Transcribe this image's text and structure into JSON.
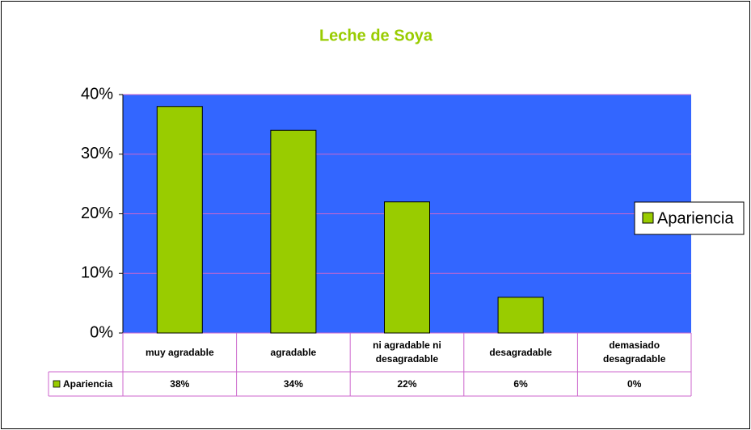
{
  "chart_data": {
    "type": "bar",
    "title": "Leche de Soya",
    "categories": [
      "muy agradable",
      "agradable",
      "ni agradable ni desagradable",
      "desagradable",
      "demasiado desagradable"
    ],
    "series": [
      {
        "name": "Apariencia",
        "color": "#99cc00",
        "values": [
          38,
          34,
          22,
          6,
          0
        ],
        "value_labels": [
          "38%",
          "34%",
          "22%",
          "6%",
          "0%"
        ]
      }
    ],
    "ylim": [
      0,
      40
    ],
    "yticks": [
      {
        "value": 0,
        "label": "0%"
      },
      {
        "value": 10,
        "label": "10%"
      },
      {
        "value": 20,
        "label": "20%"
      },
      {
        "value": 30,
        "label": "30%"
      },
      {
        "value": 40,
        "label": "40%"
      }
    ],
    "grid": true,
    "legend": "right",
    "plot_background": "#3366ff"
  }
}
